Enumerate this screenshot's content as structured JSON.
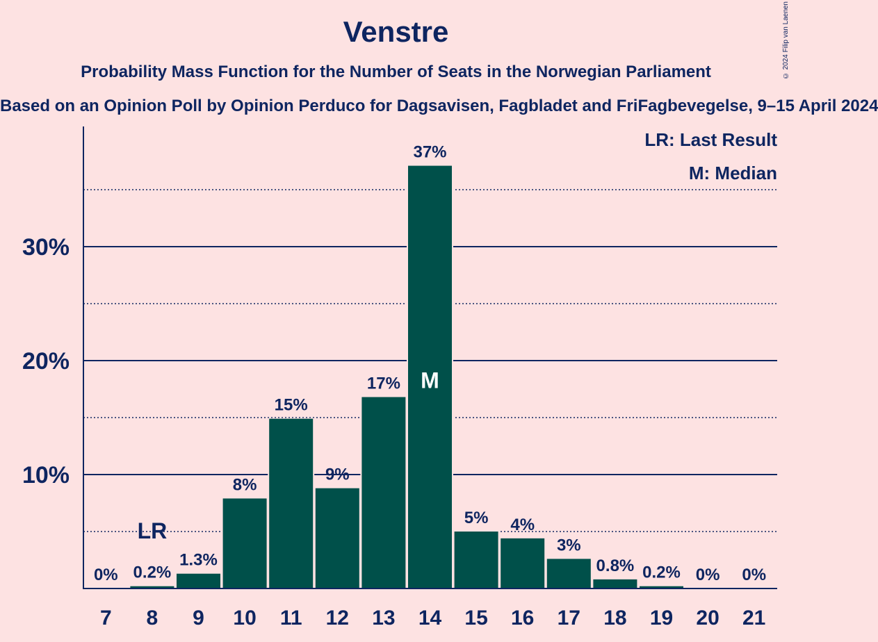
{
  "title": "Venstre",
  "subtitle": "Probability Mass Function for the Number of Seats in the Norwegian Parliament",
  "subsubtitle": "Based on an Opinion Poll by Opinion Perduco for Dagsavisen, Fagbladet and FriFagbevegelse, 9–15 April 2024",
  "copyright": "© 2024 Filip van Laenen",
  "legend": {
    "last_result": "LR: Last Result",
    "median": "M: Median"
  },
  "colors": {
    "background": "#fde2e2",
    "bar": "#00504a",
    "text": "#0e2560"
  },
  "chart_data": {
    "type": "bar",
    "categories": [
      "7",
      "8",
      "9",
      "10",
      "11",
      "12",
      "13",
      "14",
      "15",
      "16",
      "17",
      "18",
      "19",
      "20",
      "21"
    ],
    "values": [
      0,
      0.2,
      1.3,
      7.9,
      14.9,
      8.8,
      16.8,
      37.1,
      5.0,
      4.4,
      2.6,
      0.8,
      0.2,
      0,
      0
    ],
    "labels": [
      "0%",
      "0.2%",
      "1.3%",
      "8%",
      "15%",
      "9%",
      "17%",
      "37%",
      "5%",
      "4%",
      "3%",
      "0.8%",
      "0.2%",
      "0%",
      "0%"
    ],
    "ylim": [
      0,
      40
    ],
    "yticks": [
      10,
      20,
      30
    ],
    "ytick_labels": [
      "10%",
      "20%",
      "30%"
    ],
    "minor_gridlines": [
      5,
      15,
      25,
      35
    ],
    "last_result_category": "8",
    "last_result_label": "LR",
    "median_category": "14",
    "median_label": "M"
  }
}
